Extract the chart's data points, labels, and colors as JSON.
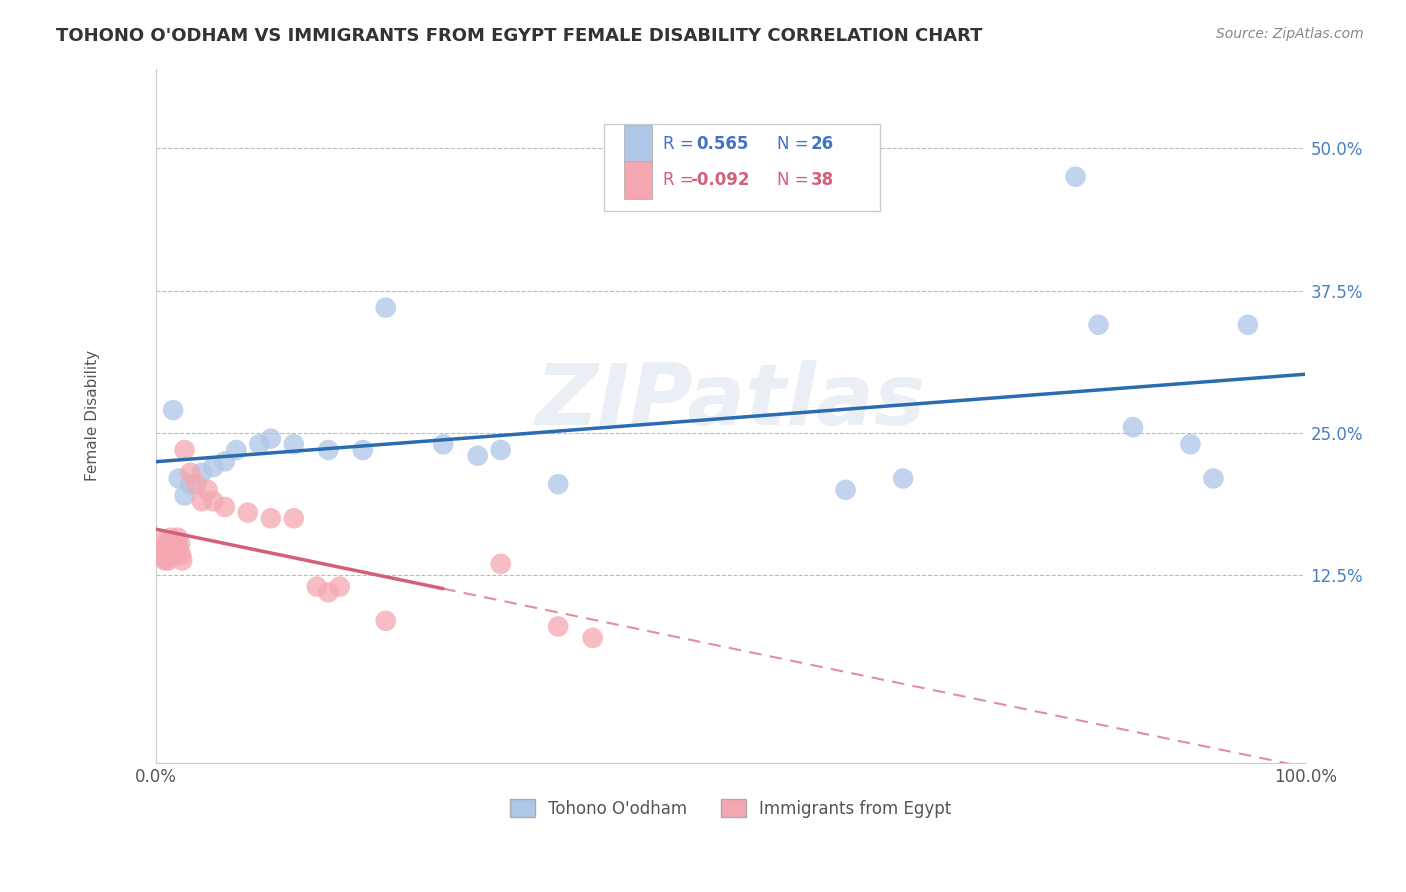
{
  "title": "TOHONO O'ODHAM VS IMMIGRANTS FROM EGYPT FEMALE DISABILITY CORRELATION CHART",
  "source": "Source: ZipAtlas.com",
  "ylabel": "Female Disability",
  "yticks": [
    0.125,
    0.25,
    0.375,
    0.5
  ],
  "ytick_labels": [
    "12.5%",
    "25.0%",
    "37.5%",
    "50.0%"
  ],
  "xlim": [
    0.0,
    1.0
  ],
  "ylim": [
    -0.04,
    0.57
  ],
  "legend_label1": "Tohono O'odham",
  "legend_label2": "Immigrants from Egypt",
  "r1": 0.565,
  "n1": 26,
  "r2": -0.092,
  "n2": 38,
  "blue_color": "#aec6e8",
  "blue_line_color": "#2b6cb0",
  "pink_color": "#f4a7b0",
  "pink_line_color": "#d45f7a",
  "blue_scatter": [
    [
      0.015,
      0.27
    ],
    [
      0.02,
      0.21
    ],
    [
      0.025,
      0.195
    ],
    [
      0.03,
      0.205
    ],
    [
      0.04,
      0.215
    ],
    [
      0.05,
      0.22
    ],
    [
      0.06,
      0.225
    ],
    [
      0.07,
      0.235
    ],
    [
      0.09,
      0.24
    ],
    [
      0.1,
      0.245
    ],
    [
      0.12,
      0.24
    ],
    [
      0.15,
      0.235
    ],
    [
      0.18,
      0.235
    ],
    [
      0.2,
      0.36
    ],
    [
      0.28,
      0.23
    ],
    [
      0.6,
      0.2
    ],
    [
      0.65,
      0.21
    ],
    [
      0.8,
      0.475
    ],
    [
      0.82,
      0.345
    ],
    [
      0.85,
      0.255
    ],
    [
      0.9,
      0.24
    ],
    [
      0.92,
      0.21
    ],
    [
      0.95,
      0.345
    ],
    [
      0.25,
      0.24
    ],
    [
      0.3,
      0.235
    ],
    [
      0.35,
      0.205
    ]
  ],
  "pink_scatter": [
    [
      0.005,
      0.145
    ],
    [
      0.005,
      0.15
    ],
    [
      0.006,
      0.155
    ],
    [
      0.007,
      0.14
    ],
    [
      0.008,
      0.138
    ],
    [
      0.008,
      0.148
    ],
    [
      0.009,
      0.143
    ],
    [
      0.01,
      0.153
    ],
    [
      0.011,
      0.138
    ],
    [
      0.012,
      0.148
    ],
    [
      0.013,
      0.158
    ],
    [
      0.014,
      0.143
    ],
    [
      0.015,
      0.153
    ],
    [
      0.016,
      0.148
    ],
    [
      0.017,
      0.143
    ],
    [
      0.018,
      0.153
    ],
    [
      0.019,
      0.158
    ],
    [
      0.02,
      0.148
    ],
    [
      0.021,
      0.153
    ],
    [
      0.022,
      0.143
    ],
    [
      0.023,
      0.138
    ],
    [
      0.025,
      0.235
    ],
    [
      0.03,
      0.215
    ],
    [
      0.035,
      0.205
    ],
    [
      0.04,
      0.19
    ],
    [
      0.045,
      0.2
    ],
    [
      0.05,
      0.19
    ],
    [
      0.06,
      0.185
    ],
    [
      0.08,
      0.18
    ],
    [
      0.1,
      0.175
    ],
    [
      0.12,
      0.175
    ],
    [
      0.14,
      0.115
    ],
    [
      0.15,
      0.11
    ],
    [
      0.16,
      0.115
    ],
    [
      0.2,
      0.085
    ],
    [
      0.3,
      0.135
    ],
    [
      0.35,
      0.08
    ],
    [
      0.38,
      0.07
    ]
  ],
  "background_color": "#ffffff",
  "grid_color": "#bbbbbb",
  "watermark_text": "ZIPatlas",
  "title_fontsize": 13,
  "axis_label_fontsize": 11,
  "tick_fontsize": 12
}
